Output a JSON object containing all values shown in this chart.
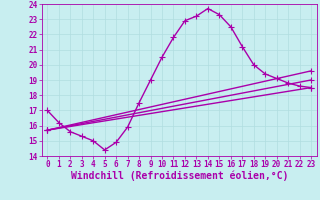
{
  "xlabel": "Windchill (Refroidissement éolien,°C)",
  "background_color": "#c8eef0",
  "grid_color": "#b0dde0",
  "line_color": "#aa00aa",
  "xlim": [
    -0.5,
    23.5
  ],
  "ylim": [
    14,
    24
  ],
  "xticks": [
    0,
    1,
    2,
    3,
    4,
    5,
    6,
    7,
    8,
    9,
    10,
    11,
    12,
    13,
    14,
    15,
    16,
    17,
    18,
    19,
    20,
    21,
    22,
    23
  ],
  "yticks": [
    14,
    15,
    16,
    17,
    18,
    19,
    20,
    21,
    22,
    23,
    24
  ],
  "curve1_x": [
    0,
    1,
    2,
    3,
    4,
    5,
    6,
    7,
    8,
    9,
    10,
    11,
    12,
    13,
    14,
    15,
    16,
    17,
    18,
    19,
    20,
    21,
    22,
    23
  ],
  "curve1_y": [
    17.0,
    16.2,
    15.6,
    15.3,
    15.0,
    14.4,
    14.9,
    15.9,
    17.5,
    19.0,
    20.5,
    21.8,
    22.9,
    23.2,
    23.7,
    23.3,
    22.5,
    21.2,
    20.0,
    19.4,
    19.1,
    18.8,
    18.6,
    18.5
  ],
  "line1_x": [
    0,
    23
  ],
  "line1_y": [
    15.7,
    18.5
  ],
  "line2_x": [
    0,
    23
  ],
  "line2_y": [
    15.7,
    19.0
  ],
  "line3_x": [
    0,
    23
  ],
  "line3_y": [
    15.7,
    19.6
  ],
  "marker": "+",
  "markersize": 4,
  "linewidth": 1.0,
  "tick_fontsize": 5.5,
  "xlabel_fontsize": 7,
  "label_color": "#aa00aa",
  "tick_color": "#aa00aa",
  "axis_color": "#aa00aa"
}
